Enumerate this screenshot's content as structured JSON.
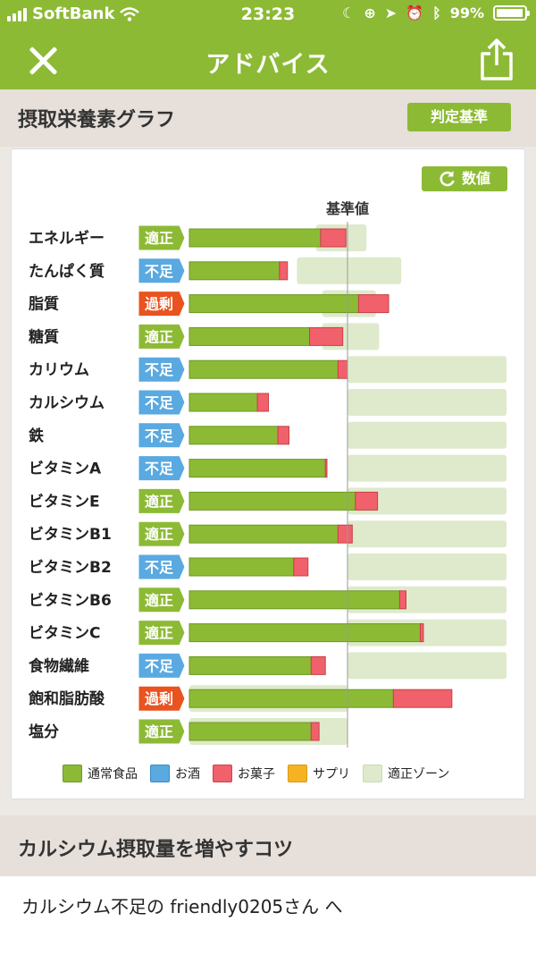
{
  "status_bar": {
    "carrier": "SoftBank",
    "time": "23:23",
    "battery": "99%"
  },
  "nav": {
    "title": "アドバイス",
    "close_icon": "close-x-icon",
    "share_icon": "share-icon"
  },
  "section_graph": {
    "title": "摂取栄養素グラフ",
    "criteria_button": "判定基準",
    "numbers_button": "数値",
    "reference_label": "基準値"
  },
  "colors": {
    "food": "#8dba35",
    "alcohol": "#5aa9e0",
    "snack": "#f0616b",
    "supplement": "#f5b324",
    "zone": "#deeacb",
    "status_adequate": "#8dba35",
    "status_deficient": "#5aa9e0",
    "status_excess": "#e8531f"
  },
  "chart_data": {
    "type": "bar",
    "orientation": "horizontal",
    "stacked": true,
    "reference_label": "基準値",
    "x_unit": "% of reference",
    "categories": [
      "エネルギー",
      "たんぱく質",
      "脂質",
      "糖質",
      "カリウム",
      "カルシウム",
      "鉄",
      "ビタミンA",
      "ビタミンE",
      "ビタミンB1",
      "ビタミンB2",
      "ビタミンB6",
      "ビタミンC",
      "食物繊維",
      "飽和脂肪酸",
      "塩分"
    ],
    "status": [
      "適正",
      "不足",
      "過剰",
      "適正",
      "不足",
      "不足",
      "不足",
      "不足",
      "適正",
      "適正",
      "不足",
      "適正",
      "適正",
      "不足",
      "過剰",
      "適正"
    ],
    "series": [
      {
        "name": "通常食品",
        "values": [
          83,
          57,
          107,
          76,
          94,
          43,
          56,
          86,
          105,
          94,
          66,
          133,
          146,
          77,
          129,
          77
        ]
      },
      {
        "name": "お酒",
        "values": [
          0,
          0,
          0,
          0,
          0,
          0,
          0,
          0,
          0,
          0,
          0,
          0,
          0,
          0,
          0,
          0
        ]
      },
      {
        "name": "お菓子",
        "values": [
          16,
          5,
          19,
          21,
          6,
          7,
          7,
          1,
          14,
          9,
          9,
          4,
          2,
          9,
          37,
          5
        ]
      },
      {
        "name": "サプリ",
        "values": [
          0,
          0,
          0,
          0,
          0,
          0,
          0,
          0,
          0,
          0,
          0,
          0,
          0,
          0,
          0,
          0
        ]
      }
    ],
    "zones": [
      [
        80,
        112
      ],
      [
        68,
        134
      ],
      [
        84,
        118
      ],
      [
        84,
        120
      ],
      [
        100,
        100
      ],
      [
        100,
        100
      ],
      [
        100,
        100
      ],
      [
        100,
        100
      ],
      [
        100,
        100
      ],
      [
        100,
        100
      ],
      [
        100,
        100
      ],
      [
        100,
        100
      ],
      [
        100,
        100
      ],
      [
        100,
        100
      ],
      [
        0,
        100
      ],
      [
        0,
        100
      ]
    ],
    "zones_open_ended": [
      false,
      false,
      false,
      false,
      true,
      true,
      true,
      true,
      true,
      true,
      true,
      true,
      true,
      true,
      false,
      false
    ],
    "legend": [
      "通常食品",
      "お酒",
      "お菓子",
      "サプリ",
      "適正ゾーン"
    ],
    "legend_position": "bottom",
    "grid": false
  },
  "legend_labels": {
    "food": "通常食品",
    "alcohol": "お酒",
    "snack": "お菓子",
    "supplement": "サプリ",
    "zone": "適正ゾーン"
  },
  "section_tips": {
    "title": "カルシウム摂取量を増やすコツ",
    "intro": "カルシウム不足の friendly0205さん へ"
  }
}
